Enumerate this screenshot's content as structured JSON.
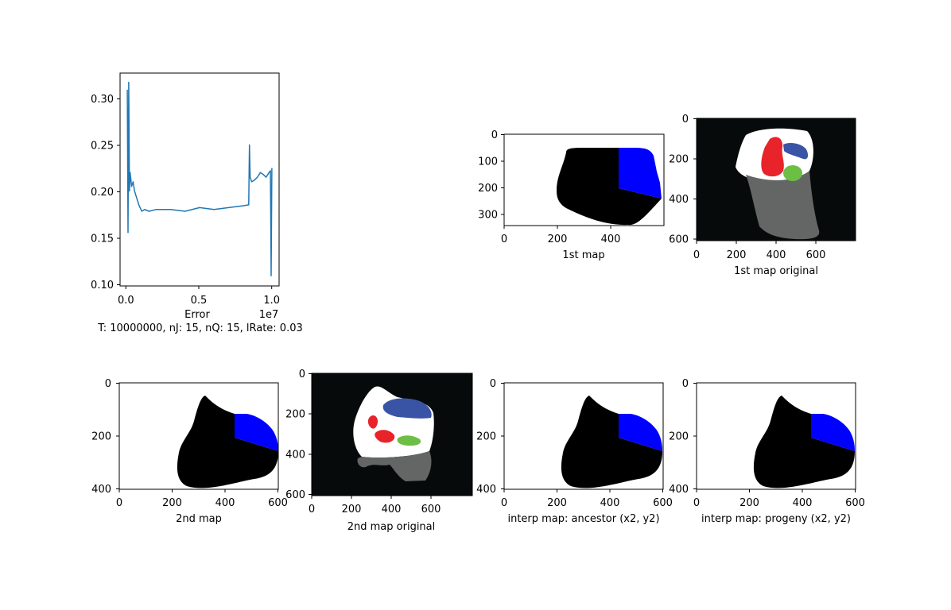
{
  "figure": {
    "caption": "T: 10000000, nJ: 15, nQ: 15, lRate: 0.03"
  },
  "colors": {
    "line": "#1f77b4",
    "region_blue": "#0000ff",
    "region_black": "#000000",
    "orig_background": "#060a0b",
    "orig_white": "#ffffff",
    "orig_gray": "#646565",
    "orig_red": "#e8232a",
    "orig_navy": "#3a54a5",
    "orig_green": "#6cbf44"
  },
  "chart_data": [
    {
      "id": "error",
      "type": "line",
      "xlabel": "Error",
      "offset_label": "1e7",
      "xlim": [
        -0.05,
        1.05
      ],
      "ylim": [
        0.097,
        0.328
      ],
      "xticks": [
        "0.0",
        "0.5",
        "1.0"
      ],
      "xtick_values": [
        0.0,
        0.5,
        1.0
      ],
      "yticks": [
        "0.10",
        "0.15",
        "0.20",
        "0.25",
        "0.30"
      ],
      "ytick_values": [
        0.1,
        0.15,
        0.2,
        0.25,
        0.3
      ],
      "series": [
        {
          "x": [
            0.0,
            0.005,
            0.01,
            0.015,
            0.02,
            0.03,
            0.04,
            0.05,
            0.06,
            0.08,
            0.1,
            0.12,
            0.15,
            0.2,
            0.3,
            0.4,
            0.5,
            0.6,
            0.7,
            0.8,
            0.84,
            0.845,
            0.85,
            0.86,
            0.88,
            0.9,
            0.92,
            0.94,
            0.96,
            0.98,
            0.99,
            0.995,
            1.0
          ],
          "y": [
            0.31,
            0.155,
            0.318,
            0.2,
            0.22,
            0.205,
            0.21,
            0.2,
            0.195,
            0.185,
            0.178,
            0.18,
            0.178,
            0.18,
            0.18,
            0.178,
            0.182,
            0.18,
            0.182,
            0.184,
            0.185,
            0.25,
            0.215,
            0.21,
            0.212,
            0.215,
            0.22,
            0.218,
            0.215,
            0.22,
            0.222,
            0.108,
            0.225
          ]
        }
      ]
    },
    {
      "id": "map1",
      "type": "image",
      "xlabel": "1st map",
      "xticks": [
        "0",
        "200",
        "400"
      ],
      "yticks": [
        "0",
        "100",
        "200",
        "300"
      ]
    },
    {
      "id": "map1-original",
      "type": "image",
      "xlabel": "1st map original",
      "xticks": [
        "0",
        "200",
        "400",
        "600"
      ],
      "yticks": [
        "0",
        "200",
        "400",
        "600"
      ]
    },
    {
      "id": "map2",
      "type": "image",
      "xlabel": "2nd map",
      "xticks": [
        "0",
        "200",
        "400",
        "600"
      ],
      "yticks": [
        "0",
        "200",
        "400"
      ]
    },
    {
      "id": "map2-original",
      "type": "image",
      "xlabel": "2nd map original",
      "xticks": [
        "0",
        "200",
        "400",
        "600"
      ],
      "yticks": [
        "0",
        "200",
        "400",
        "600"
      ]
    },
    {
      "id": "interp-ancestor",
      "type": "image",
      "xlabel": "interp map: ancestor (x2, y2)",
      "xticks": [
        "0",
        "200",
        "400",
        "600"
      ],
      "yticks": [
        "0",
        "200",
        "400"
      ]
    },
    {
      "id": "interp-progeny",
      "type": "image",
      "xlabel": "interp map: progeny (x2, y2)",
      "xticks": [
        "0",
        "200",
        "400",
        "600"
      ],
      "yticks": [
        "0",
        "200",
        "400"
      ]
    }
  ]
}
